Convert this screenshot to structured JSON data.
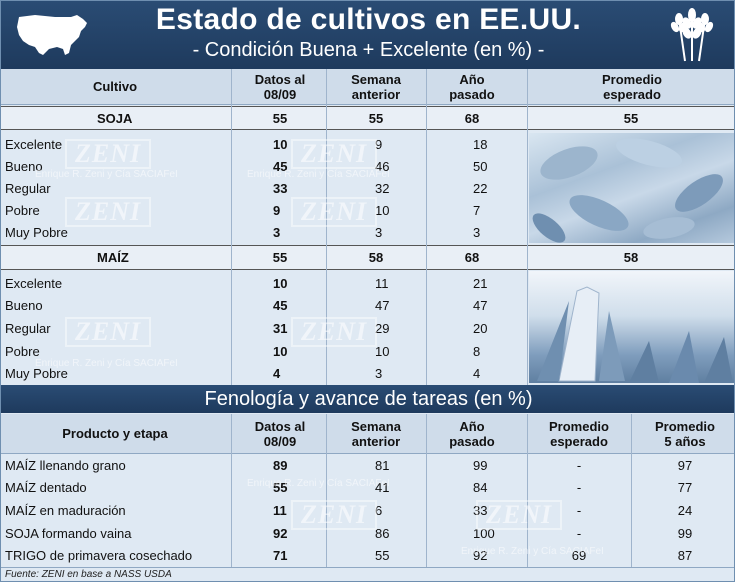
{
  "header": {
    "title": "Estado de cultivos en EE.UU.",
    "subtitle": "- Condición Buena + Excelente (en %) -"
  },
  "table1": {
    "headers": {
      "cultivo": "Cultivo",
      "datos": "Datos al\n08/09",
      "semana": "Semana\nanterior",
      "anio": "Año\npasado",
      "promedio": "Promedio\nesperado"
    },
    "soja": {
      "name": "SOJA",
      "values": [
        "55",
        "55",
        "68",
        "55"
      ],
      "rows": [
        {
          "label": "Excelente",
          "v": [
            "10",
            "9",
            "18"
          ]
        },
        {
          "label": "Bueno",
          "v": [
            "45",
            "46",
            "50"
          ]
        },
        {
          "label": "Regular",
          "v": [
            "33",
            "32",
            "22"
          ]
        },
        {
          "label": "Pobre",
          "v": [
            "9",
            "10",
            "7"
          ]
        },
        {
          "label": "Muy Pobre",
          "v": [
            "3",
            "3",
            "3"
          ]
        }
      ]
    },
    "maiz": {
      "name": "MAÍZ",
      "values": [
        "55",
        "58",
        "68",
        "58"
      ],
      "rows": [
        {
          "label": "Excelente",
          "v": [
            "10",
            "11",
            "21"
          ]
        },
        {
          "label": "Bueno",
          "v": [
            "45",
            "47",
            "47"
          ]
        },
        {
          "label": "Regular",
          "v": [
            "31",
            "29",
            "20"
          ]
        },
        {
          "label": "Pobre",
          "v": [
            "10",
            "10",
            "8"
          ]
        },
        {
          "label": "Muy Pobre",
          "v": [
            "4",
            "3",
            "4"
          ]
        }
      ]
    }
  },
  "section2": {
    "title": "Fenología y avance de tareas (en %)",
    "headers": {
      "producto": "Producto y etapa",
      "datos": "Datos al\n08/09",
      "semana": "Semana\nanterior",
      "anio": "Año\npasado",
      "esperado": "Promedio\nesperado",
      "cinco": "Promedio\n5 años"
    },
    "rows": [
      {
        "label": "MAÍZ llenando grano",
        "v": [
          "89",
          "81",
          "99",
          "-",
          "97"
        ]
      },
      {
        "label": "MAÍZ dentado",
        "v": [
          "55",
          "41",
          "84",
          "-",
          "77"
        ]
      },
      {
        "label": "MAÍZ en maduración",
        "v": [
          "11",
          "6",
          "33",
          "-",
          "24"
        ]
      },
      {
        "label": "SOJA formando vaina",
        "v": [
          "92",
          "86",
          "100",
          "-",
          "99"
        ]
      },
      {
        "label": "TRIGO de primavera cosechado",
        "v": [
          "71",
          "55",
          "92",
          "69",
          "87"
        ]
      }
    ]
  },
  "footer": {
    "source": "Fuente: ZENI en base a NASS USDA"
  },
  "watermarks": {
    "logo": "ZENI",
    "company": "Enrique R. Zeni y Cía SACIAFeI"
  },
  "colors": {
    "header_bg": "#1e3a5d",
    "table_bg": "#dfe9f3",
    "header_row_bg": "#cfdcea"
  }
}
